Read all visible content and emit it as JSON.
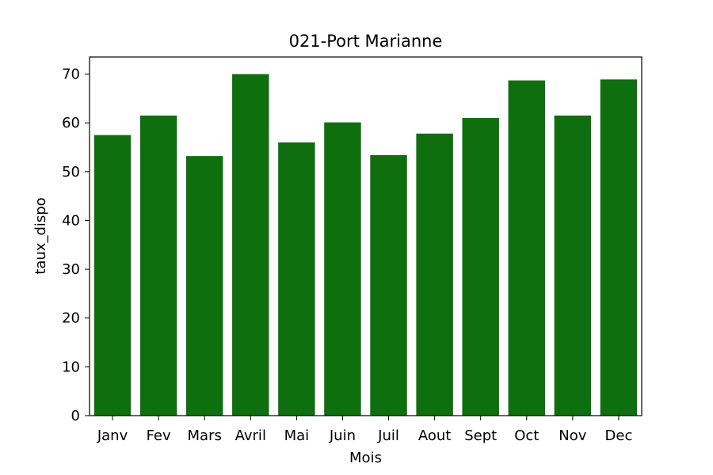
{
  "chart_data": {
    "type": "bar",
    "title": "021-Port Marianne",
    "xlabel": "Mois",
    "ylabel": "taux_dispo",
    "categories": [
      "Janv",
      "Fev",
      "Mars",
      "Avril",
      "Mai",
      "Juin",
      "Juil",
      "Aout",
      "Sept",
      "Oct",
      "Nov",
      "Dec"
    ],
    "values": [
      57.5,
      61.5,
      53.2,
      70.0,
      56.0,
      60.1,
      53.4,
      57.8,
      61.0,
      68.7,
      61.5,
      68.9
    ],
    "ylim": [
      0,
      73.5
    ],
    "yticks": [
      "0",
      "10",
      "20",
      "30",
      "40",
      "50",
      "60",
      "70"
    ],
    "bar_color": "#0f6f0f",
    "grid": false
  }
}
